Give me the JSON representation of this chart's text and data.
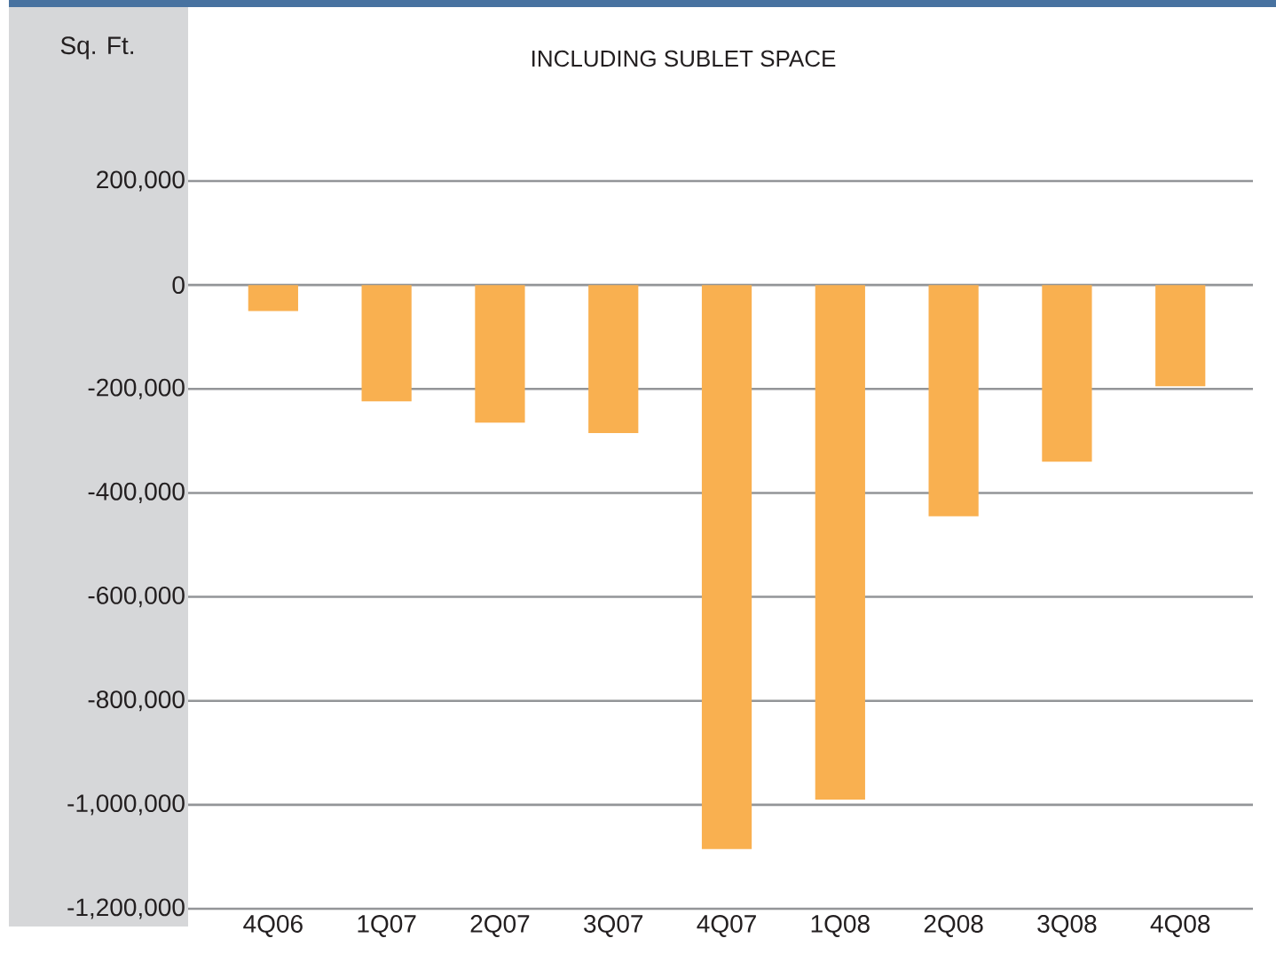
{
  "chart_data": {
    "type": "bar",
    "title": "INCLUDING SUBLET SPACE",
    "ylabel": "Sq. Ft.",
    "categories": [
      "4Q06",
      "1Q07",
      "2Q07",
      "3Q07",
      "4Q07",
      "1Q08",
      "2Q08",
      "3Q08",
      "4Q08"
    ],
    "values": [
      -50000,
      -224000,
      -265000,
      -285000,
      -1085000,
      -990000,
      -445000,
      -340000,
      -195000
    ],
    "color": "#f9b050",
    "ylim": [
      -1200000,
      200000
    ],
    "yticks": [
      {
        "value": 200000,
        "label": "200,000"
      },
      {
        "value": 0,
        "label": "0"
      },
      {
        "value": -200000,
        "label": "-200,000"
      },
      {
        "value": -400000,
        "label": "-400,000"
      },
      {
        "value": -600000,
        "label": "-600,000"
      },
      {
        "value": -800000,
        "label": "-800,000"
      },
      {
        "value": -1000000,
        "label": "-1,000,000"
      },
      {
        "value": -1200000,
        "label": "-1,200,000"
      }
    ],
    "grid": "y"
  }
}
